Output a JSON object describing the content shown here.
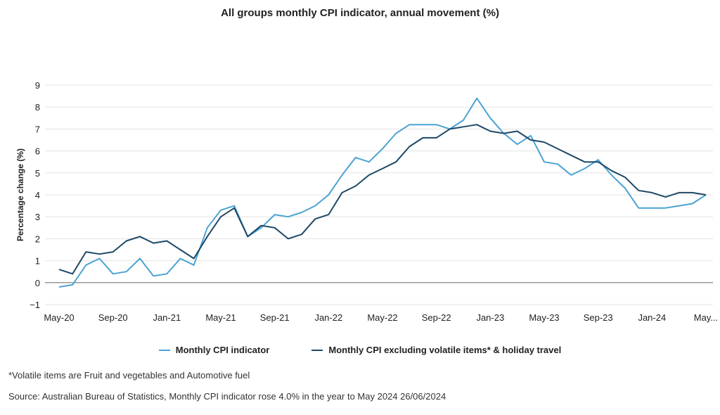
{
  "colors": {
    "series1": "#4aa3d3",
    "series2": "#1d4866",
    "grid": "#e3e3e3",
    "zero_line": "#999999"
  },
  "chart_data": {
    "type": "line",
    "title": "All groups monthly CPI indicator, annual movement (%)",
    "xlabel": "",
    "ylabel": "Percentage change (%)",
    "ylim": [
      -1,
      9
    ],
    "yticks": [
      -1,
      0,
      1,
      2,
      3,
      4,
      5,
      6,
      7,
      8,
      9
    ],
    "grid": true,
    "legend_position": "bottom",
    "x": [
      "May-20",
      "Jun-20",
      "Jul-20",
      "Aug-20",
      "Sep-20",
      "Oct-20",
      "Nov-20",
      "Dec-20",
      "Jan-21",
      "Feb-21",
      "Mar-21",
      "Apr-21",
      "May-21",
      "Jun-21",
      "Jul-21",
      "Aug-21",
      "Sep-21",
      "Oct-21",
      "Nov-21",
      "Dec-21",
      "Jan-22",
      "Feb-22",
      "Mar-22",
      "Apr-22",
      "May-22",
      "Jun-22",
      "Jul-22",
      "Aug-22",
      "Sep-22",
      "Oct-22",
      "Nov-22",
      "Dec-22",
      "Jan-23",
      "Feb-23",
      "Mar-23",
      "Apr-23",
      "May-23",
      "Jun-23",
      "Jul-23",
      "Aug-23",
      "Sep-23",
      "Oct-23",
      "Nov-23",
      "Dec-23",
      "Jan-24",
      "Feb-24",
      "Mar-24",
      "Apr-24",
      "May-24"
    ],
    "tick_labels": [
      {
        "label": "May-20",
        "index": 0
      },
      {
        "label": "Sep-20",
        "index": 4
      },
      {
        "label": "Jan-21",
        "index": 8
      },
      {
        "label": "May-21",
        "index": 12
      },
      {
        "label": "Sep-21",
        "index": 16
      },
      {
        "label": "Jan-22",
        "index": 20
      },
      {
        "label": "May-22",
        "index": 24
      },
      {
        "label": "Sep-22",
        "index": 28
      },
      {
        "label": "Jan-23",
        "index": 32
      },
      {
        "label": "May-23",
        "index": 36
      },
      {
        "label": "Sep-23",
        "index": 40
      },
      {
        "label": "Jan-24",
        "index": 44
      },
      {
        "label": "May...",
        "index": 48
      }
    ],
    "series": [
      {
        "name": "Monthly CPI indicator",
        "values": [
          -0.2,
          -0.1,
          0.8,
          1.1,
          0.4,
          0.5,
          1.1,
          0.3,
          0.4,
          1.1,
          0.8,
          2.5,
          3.3,
          3.5,
          2.1,
          2.5,
          3.1,
          3.0,
          3.2,
          3.5,
          4.0,
          4.9,
          5.7,
          5.5,
          6.1,
          6.8,
          7.2,
          7.2,
          7.2,
          7.0,
          7.4,
          8.4,
          7.5,
          6.8,
          6.3,
          6.7,
          5.5,
          5.4,
          4.9,
          5.2,
          5.6,
          4.9,
          4.3,
          3.4,
          3.4,
          3.4,
          3.5,
          3.6,
          4.0
        ]
      },
      {
        "name": "Monthly CPI excluding volatile items* & holiday travel",
        "values": [
          0.6,
          0.4,
          1.4,
          1.3,
          1.4,
          1.9,
          2.1,
          1.8,
          1.9,
          1.5,
          1.1,
          2.1,
          3.0,
          3.4,
          2.1,
          2.6,
          2.5,
          2.0,
          2.2,
          2.9,
          3.1,
          4.1,
          4.4,
          4.9,
          5.2,
          5.5,
          6.2,
          6.6,
          6.6,
          7.0,
          7.1,
          7.2,
          6.9,
          6.8,
          6.9,
          6.5,
          6.4,
          6.1,
          5.8,
          5.5,
          5.5,
          5.1,
          4.8,
          4.2,
          4.1,
          3.9,
          4.1,
          4.1,
          4.0
        ]
      }
    ]
  },
  "legend": {
    "item1": "Monthly CPI indicator",
    "item2": "Monthly CPI excluding volatile items* & holiday travel"
  },
  "footnotes": {
    "note": "*Volatile items are Fruit and vegetables and Automotive fuel",
    "source": "Source: Australian Bureau of Statistics, Monthly CPI indicator rose 4.0% in the year to May 2024 26/06/2024"
  }
}
